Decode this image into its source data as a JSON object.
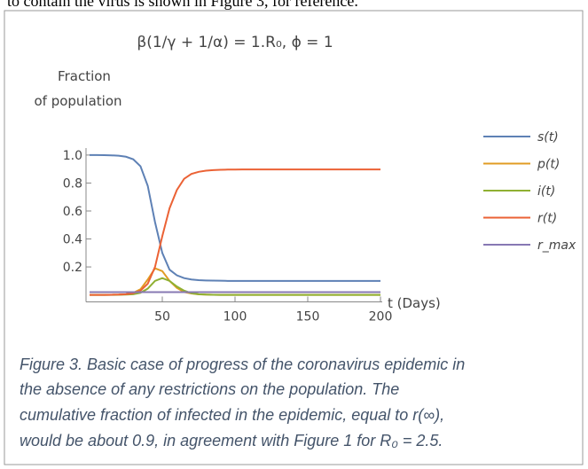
{
  "top_text": "to contain the virus is shown in Figure 3, for reference.",
  "chart_data": {
    "type": "line",
    "title": "β(1/γ + 1/α) = 1.R₀,   ϕ = 1",
    "ylabel": [
      "Fraction",
      "of population"
    ],
    "xlabel": "t (Days)",
    "x": [
      0,
      5,
      10,
      15,
      20,
      25,
      30,
      35,
      40,
      45,
      50,
      55,
      60,
      65,
      70,
      75,
      80,
      85,
      90,
      95,
      100,
      105,
      110,
      115,
      120,
      125,
      130,
      135,
      140,
      145,
      150,
      155,
      160,
      165,
      170,
      175,
      180,
      185,
      190,
      195,
      200
    ],
    "xlim": [
      0,
      200
    ],
    "xticks": [
      50,
      100,
      150,
      200
    ],
    "ylim": [
      -0.05,
      1.05
    ],
    "yticks": [
      {
        "value": 1,
        "label": "1.0"
      },
      0.8,
      0.6,
      0.4,
      0.2
    ],
    "series": [
      {
        "name": "s(t)",
        "color": "#5e81b5",
        "values": [
          1,
          1,
          0.999,
          0.998,
          0.995,
          0.988,
          0.97,
          0.92,
          0.78,
          0.52,
          0.3,
          0.18,
          0.14,
          0.12,
          0.11,
          0.105,
          0.103,
          0.102,
          0.101,
          0.1,
          0.1,
          0.1,
          0.1,
          0.1,
          0.1,
          0.1,
          0.1,
          0.1,
          0.1,
          0.1,
          0.1,
          0.1,
          0.1,
          0.1,
          0.1,
          0.1,
          0.1,
          0.1,
          0.1,
          0.1,
          0.1
        ]
      },
      {
        "name": "p(t)",
        "color": "#e19c24",
        "values": [
          0,
          0,
          0,
          0.001,
          0.002,
          0.005,
          0.015,
          0.04,
          0.11,
          0.19,
          0.17,
          0.1,
          0.05,
          0.02,
          0.01,
          0.004,
          0.002,
          0.001,
          0,
          0,
          0,
          0,
          0,
          0,
          0,
          0,
          0,
          0,
          0,
          0,
          0,
          0,
          0,
          0,
          0,
          0,
          0,
          0,
          0,
          0,
          0
        ]
      },
      {
        "name": "i(t)",
        "color": "#8fb032",
        "values": [
          0,
          0,
          0,
          0,
          0.001,
          0.002,
          0.005,
          0.015,
          0.045,
          0.1,
          0.12,
          0.1,
          0.06,
          0.03,
          0.012,
          0.005,
          0.002,
          0.001,
          0,
          0,
          0,
          0,
          0,
          0,
          0,
          0,
          0,
          0,
          0,
          0,
          0,
          0,
          0,
          0,
          0,
          0,
          0,
          0,
          0,
          0,
          0
        ]
      },
      {
        "name": "r(t)",
        "color": "#eb6235",
        "values": [
          0,
          0,
          0,
          0.001,
          0.002,
          0.005,
          0.012,
          0.03,
          0.08,
          0.2,
          0.42,
          0.62,
          0.75,
          0.83,
          0.865,
          0.88,
          0.888,
          0.892,
          0.895,
          0.896,
          0.896,
          0.897,
          0.897,
          0.897,
          0.897,
          0.897,
          0.897,
          0.897,
          0.897,
          0.897,
          0.897,
          0.897,
          0.897,
          0.897,
          0.897,
          0.897,
          0.897,
          0.897,
          0.897,
          0.897,
          0.897
        ]
      },
      {
        "name": "r_max",
        "color": "#8778b3",
        "values": [
          0.02,
          0.02,
          0.02,
          0.02,
          0.02,
          0.02,
          0.02,
          0.02,
          0.02,
          0.02,
          0.02,
          0.02,
          0.02,
          0.02,
          0.02,
          0.02,
          0.02,
          0.02,
          0.02,
          0.02,
          0.02,
          0.02,
          0.02,
          0.02,
          0.02,
          0.02,
          0.02,
          0.02,
          0.02,
          0.02,
          0.02,
          0.02,
          0.02,
          0.02,
          0.02,
          0.02,
          0.02,
          0.02,
          0.02,
          0.02,
          0.02
        ]
      }
    ]
  },
  "caption": [
    "Figure 3.  Basic case of progress of the coronavirus epidemic in",
    "the absence of any restrictions on the population.  The",
    "cumulative fraction of infected in the epidemic, equal to r(∞),",
    "would be about 0.9, in agreement with Figure 1 for R₀ = 2.5."
  ]
}
